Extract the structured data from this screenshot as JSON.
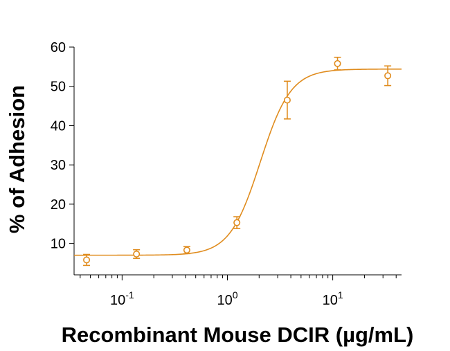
{
  "chart_data": {
    "type": "scatter",
    "title": "",
    "xlabel": "Recombinant Mouse DCIR (µg/mL)",
    "ylabel": "% of Adhesion",
    "x_scale": "log",
    "xlim": [
      0.035,
      45
    ],
    "ylim": [
      2,
      60
    ],
    "grid": false,
    "legend": "none",
    "color": "#e08c1e",
    "x_ticks": [
      {
        "value": 0.1,
        "base": "10",
        "exp": "-1"
      },
      {
        "value": 1,
        "base": "10",
        "exp": "0"
      },
      {
        "value": 10,
        "base": "10",
        "exp": "1"
      }
    ],
    "y_ticks": [
      10,
      20,
      30,
      40,
      50,
      60
    ],
    "points": [
      {
        "x": 0.046,
        "y": 5.8,
        "err": 1.4
      },
      {
        "x": 0.137,
        "y": 7.3,
        "err": 1.1
      },
      {
        "x": 0.412,
        "y": 8.3,
        "err": 0.9
      },
      {
        "x": 1.23,
        "y": 15.3,
        "err": 1.5
      },
      {
        "x": 3.7,
        "y": 46.5,
        "err": 4.8
      },
      {
        "x": 11.1,
        "y": 55.8,
        "err": 1.6
      },
      {
        "x": 33.3,
        "y": 52.7,
        "err": 2.5
      }
    ],
    "fit": {
      "bottom": 7.0,
      "top": 54.4,
      "ec50": 2.05,
      "hill": 3.0
    }
  }
}
